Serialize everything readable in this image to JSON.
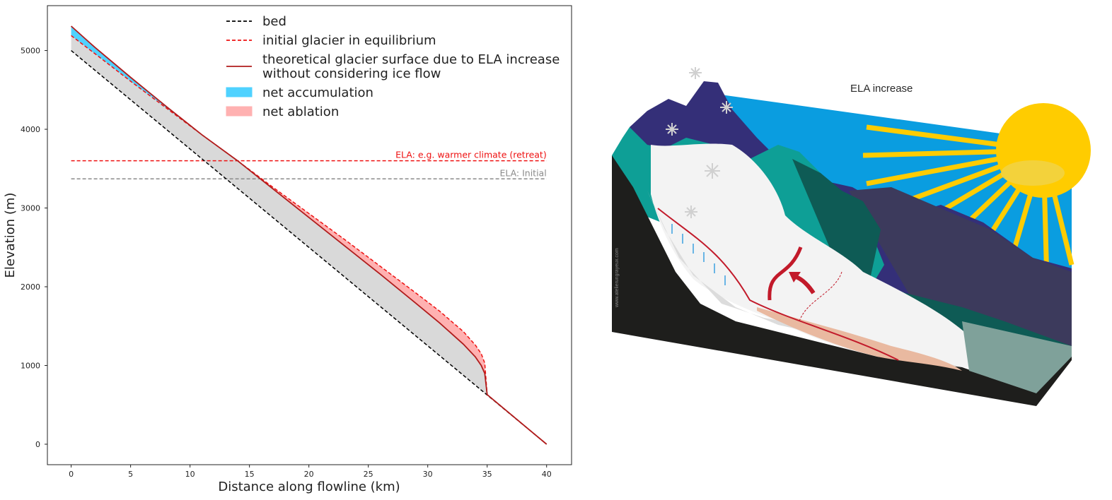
{
  "chart_data": {
    "type": "area",
    "xlabel": "Distance along flowline (km)",
    "ylabel": "Elevation (m)",
    "xlim": [
      -2,
      42.1
    ],
    "ylim": [
      -260,
      5570
    ],
    "xticks": [
      0,
      5,
      10,
      15,
      20,
      25,
      30,
      35,
      40
    ],
    "yticks": [
      0,
      1000,
      2000,
      3000,
      4000,
      5000
    ],
    "grid": false,
    "legend_position": "top-center",
    "legend": [
      {
        "label": "bed",
        "style": "dashed",
        "color": "#000000"
      },
      {
        "label": "initial glacier in equilibrium",
        "style": "dashed",
        "color": "#ee1111"
      },
      {
        "label": [
          "theoretical glacier surface due to ELA increase",
          "without considering ice flow"
        ],
        "style": "solid",
        "color": "#b01c1c"
      },
      {
        "label": "net accumulation",
        "style": "patch",
        "color": "#4fd2ff"
      },
      {
        "label": "net ablation",
        "style": "patch",
        "color": "#ffb1b1"
      }
    ],
    "series": [
      {
        "name": "bed",
        "x": [
          0,
          40
        ],
        "y": [
          5000,
          0
        ]
      },
      {
        "name": "initial glacier in equilibrium",
        "x": [
          0,
          2,
          5,
          8,
          11,
          14,
          17,
          20,
          23,
          26,
          29,
          31,
          33,
          34,
          34.5,
          34.8,
          35,
          40
        ],
        "y": [
          5190,
          4960,
          4610,
          4270,
          3930,
          3600,
          3260,
          2930,
          2600,
          2260,
          1920,
          1690,
          1430,
          1260,
          1150,
          1030,
          630,
          0
        ]
      },
      {
        "name": "theoretical glacier surface due to ELA increase without considering ice flow",
        "x": [
          0,
          2,
          5,
          8,
          11,
          14,
          17,
          20,
          23,
          26,
          29,
          31,
          33,
          34,
          34.5,
          34.8,
          35,
          40
        ],
        "y": [
          5310,
          5040,
          4660,
          4290,
          3930,
          3600,
          3240,
          2880,
          2520,
          2160,
          1790,
          1540,
          1270,
          1110,
          1000,
          900,
          630,
          0
        ]
      }
    ],
    "hlines": [
      {
        "label": "ELA: e.g. warmer climate (retreat)",
        "y": 3600,
        "color": "#ee1111"
      },
      {
        "label": "ELA: Initial",
        "y": 3370,
        "color": "#8a8a8a"
      }
    ],
    "regions": [
      {
        "name": "glacier ice",
        "color": "#d9d9d9"
      },
      {
        "name": "net accumulation",
        "color": "#4fd2ff"
      },
      {
        "name": "net ablation",
        "color": "#ffb1b1"
      }
    ]
  },
  "illustration": {
    "title": "ELA increase",
    "credit": "www.atelierungrayeux.com"
  },
  "colors": {
    "sky": "#0a9de0",
    "sun": "#ffcc00",
    "ground": "#1e1e1c",
    "teal": "#0e9f96",
    "dark_teal": "#0e5b55",
    "navy": "#342f78",
    "ice": "#f3f3f3",
    "glacier_line": "#c21a2a",
    "ablation": "#e9b9a0"
  }
}
